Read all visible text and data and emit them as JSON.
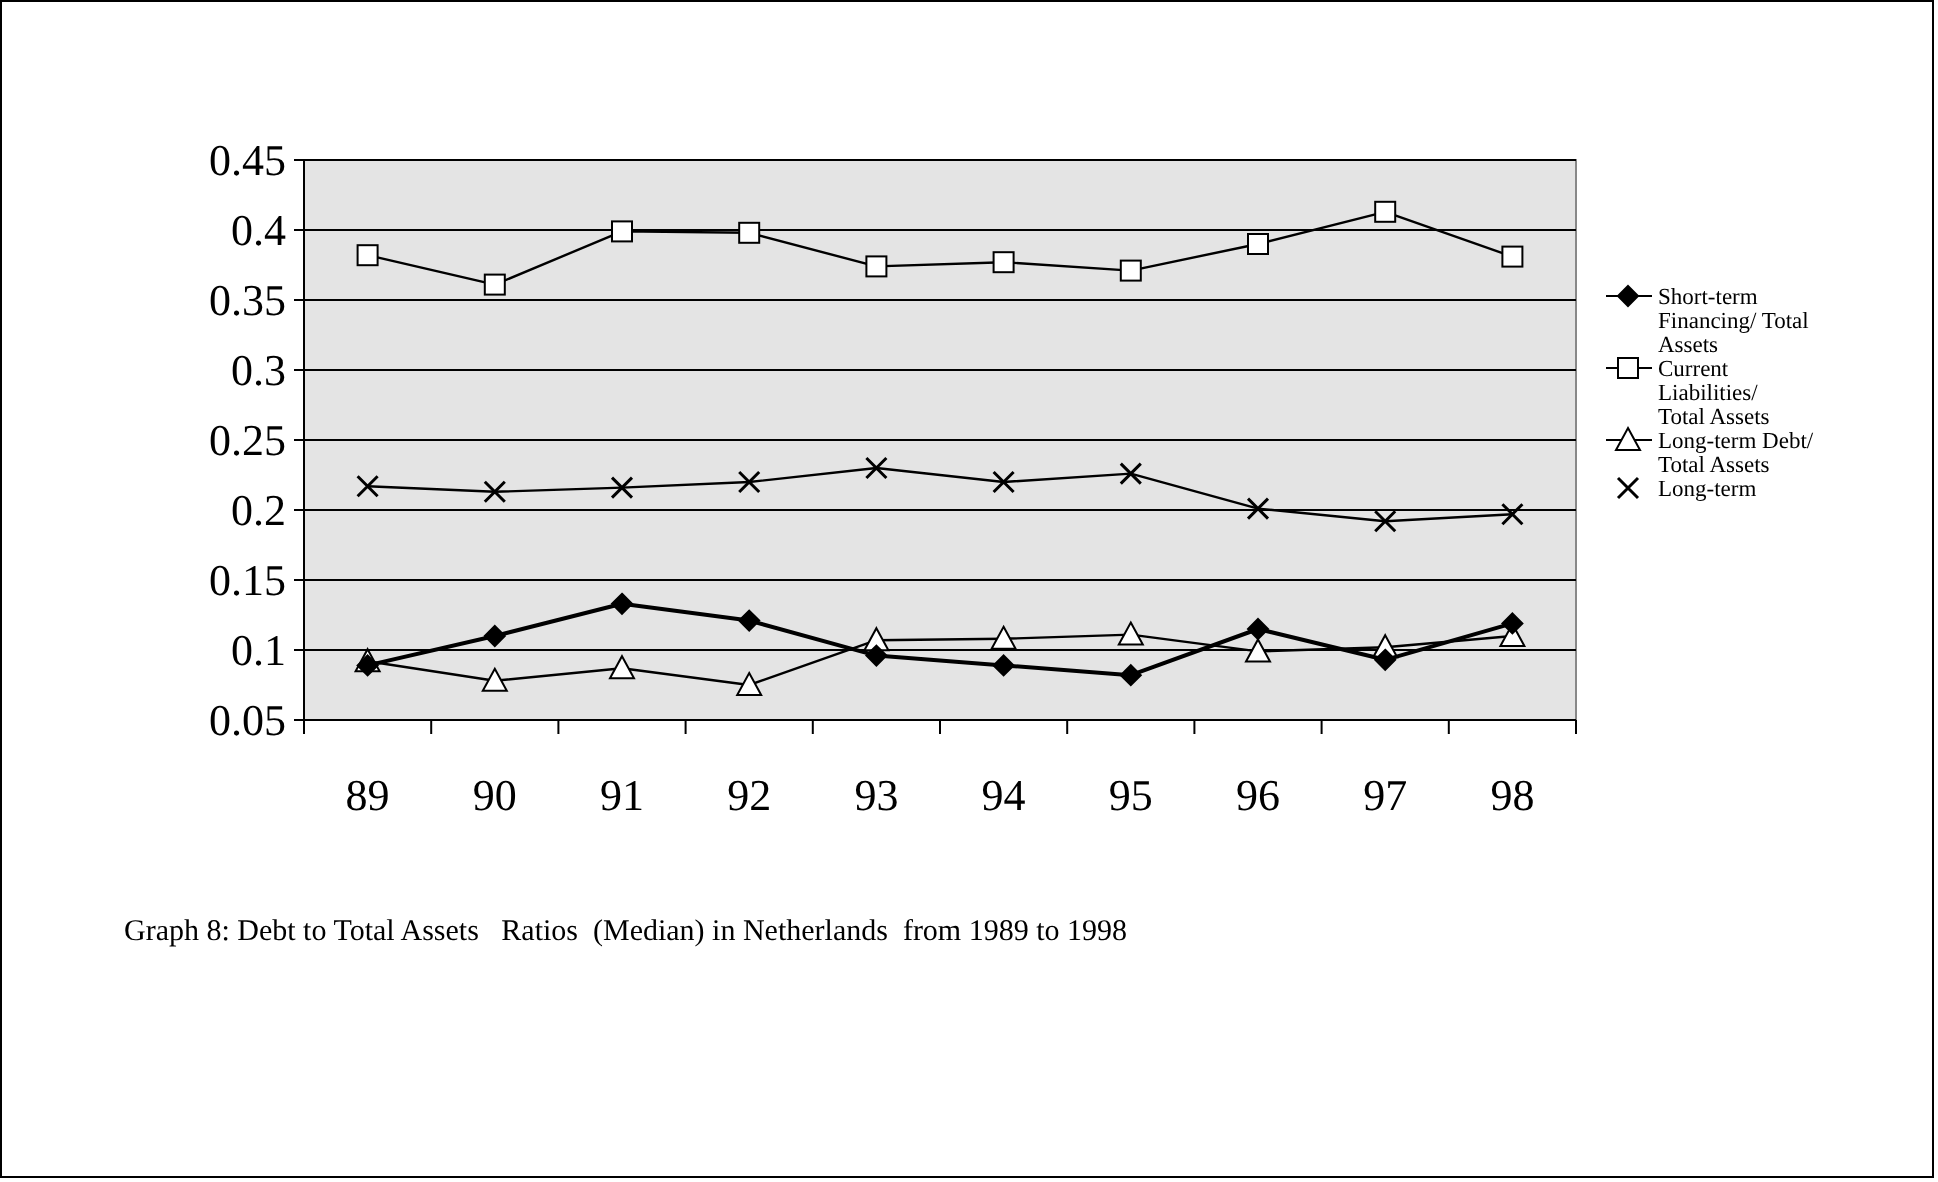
{
  "chart_data": {
    "type": "line",
    "title": "Graph 8: Debt to Total Assets   Ratios  (Median) in Netherlands  from 1989 to 1998",
    "categories": [
      "89",
      "90",
      "91",
      "92",
      "93",
      "94",
      "95",
      "96",
      "97",
      "98"
    ],
    "series": [
      {
        "name": "Short-term Financing/ Total Assets",
        "color": "#000000",
        "marker": "diamond",
        "values": [
          0.089,
          0.11,
          0.133,
          0.121,
          0.096,
          0.089,
          0.082,
          0.115,
          0.093,
          0.119
        ]
      },
      {
        "name": "Current Liabilities/ Total Assets",
        "color": "#000000",
        "marker": "square",
        "values": [
          0.382,
          0.361,
          0.399,
          0.398,
          0.374,
          0.377,
          0.371,
          0.39,
          0.413,
          0.381
        ]
      },
      {
        "name": "Long-term Debt/ Total Assets",
        "color": "#000000",
        "marker": "triangle",
        "values": [
          0.092,
          0.078,
          0.087,
          0.075,
          0.107,
          0.108,
          0.111,
          0.099,
          0.102,
          0.11
        ]
      },
      {
        "name": "Long-term",
        "color": "#000000",
        "marker": "cross",
        "values": [
          0.217,
          0.213,
          0.216,
          0.22,
          0.23,
          0.22,
          0.226,
          0.201,
          0.192,
          0.197
        ]
      }
    ],
    "ylim": [
      0.05,
      0.45
    ],
    "yticks": [
      0.05,
      0.1,
      0.15,
      0.2,
      0.25,
      0.3,
      0.35,
      0.4,
      0.45
    ],
    "grid": "y",
    "legend": "right"
  }
}
